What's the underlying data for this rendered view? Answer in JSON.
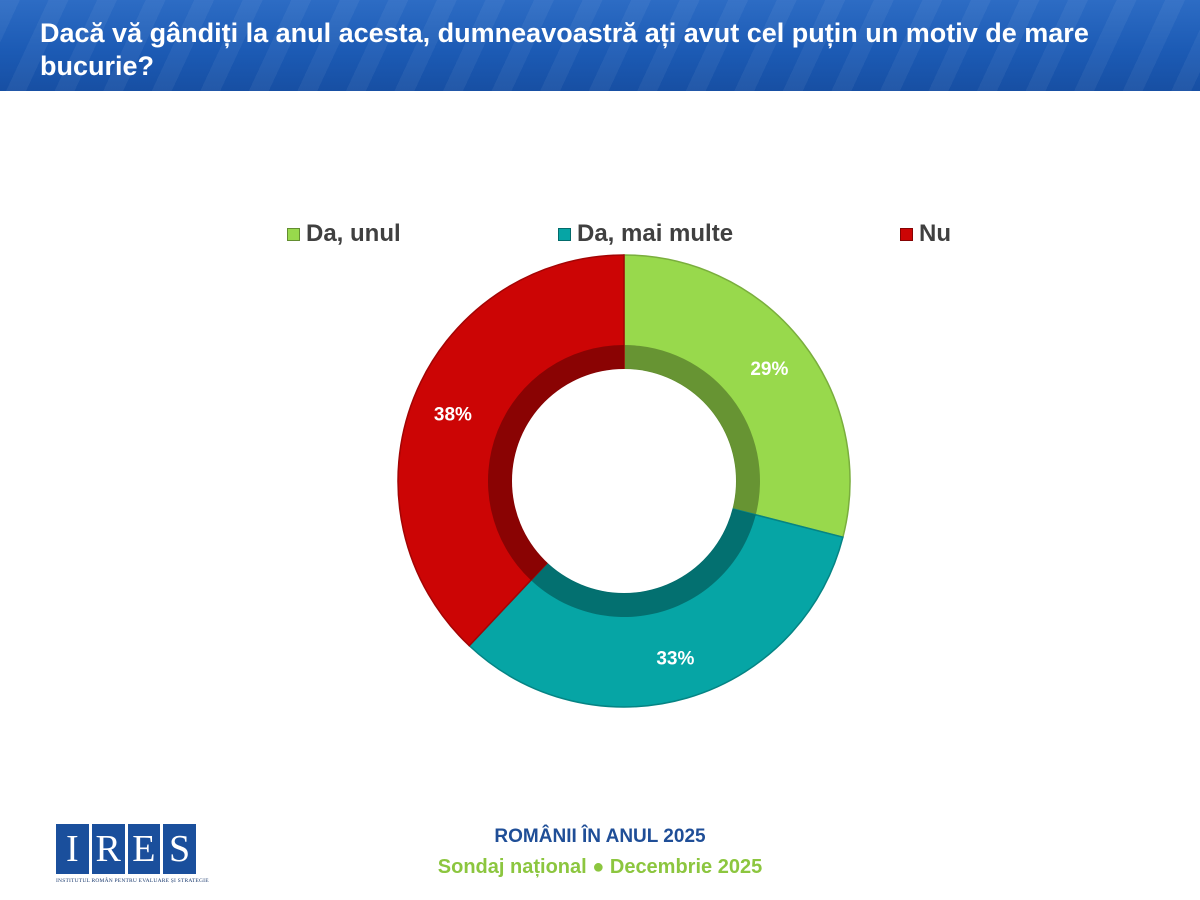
{
  "header": {
    "title": "Dacă vă gândiți la anul acesta, dumneavoastră ați avut cel puțin un motiv de mare bucurie?"
  },
  "chart_data": {
    "type": "pie",
    "variant": "donut",
    "categories": [
      "Da, unul",
      "Da, mai multe",
      "Nu"
    ],
    "values": [
      29,
      33,
      38
    ],
    "value_labels": [
      "29%",
      "33%",
      "38%"
    ],
    "colors": [
      "#98d94c",
      "#06a5a5",
      "#cc0505"
    ],
    "legend_position": "top"
  },
  "footer": {
    "logo_letters": [
      "I",
      "R",
      "E",
      "S"
    ],
    "logo_caption": "INSTITUTUL ROMÂN PENTRU EVALUARE ȘI STRATEGIE",
    "line1": "ROMÂNII ÎN ANUL 2025",
    "line2": "Sondaj național ● Decembrie 2025"
  }
}
